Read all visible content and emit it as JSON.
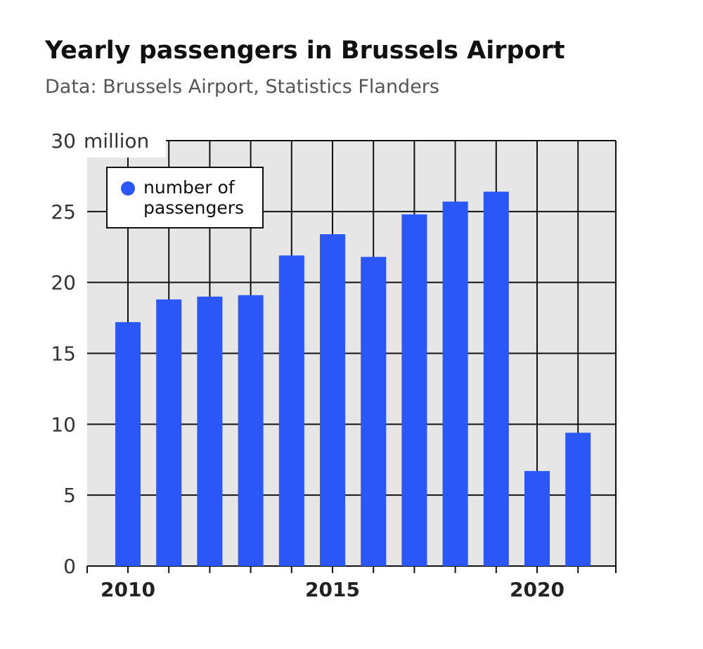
{
  "title": "Yearly passengers in Brussels Airport",
  "subtitle": "Data: Brussels Airport, Statistics Flanders",
  "colors": {
    "bar": "#2b56f8",
    "plot_bg": "#e6e6e6",
    "grid": "#111111"
  },
  "chart_data": {
    "type": "bar",
    "categories": [
      2010,
      2011,
      2012,
      2013,
      2014,
      2015,
      2016,
      2017,
      2018,
      2019,
      2020,
      2021
    ],
    "series": [
      {
        "name": "number of passengers",
        "values": [
          17.2,
          18.8,
          19.0,
          19.1,
          21.9,
          23.4,
          21.8,
          24.8,
          25.7,
          26.4,
          6.7,
          9.4
        ]
      }
    ],
    "ylim": [
      0,
      30
    ],
    "yticks": [
      0,
      5,
      10,
      15,
      20,
      25,
      30
    ],
    "ytick_labels": [
      "0",
      "5",
      "10",
      "15",
      "20",
      "25",
      "30"
    ],
    "y_unit": "million",
    "xticks": [
      2010,
      2015,
      2020
    ],
    "xtick_labels": [
      "2010",
      "2015",
      "2020"
    ],
    "legend": {
      "entries": [
        "number of",
        "passengers"
      ],
      "placement": "top-left"
    },
    "grid": true
  }
}
